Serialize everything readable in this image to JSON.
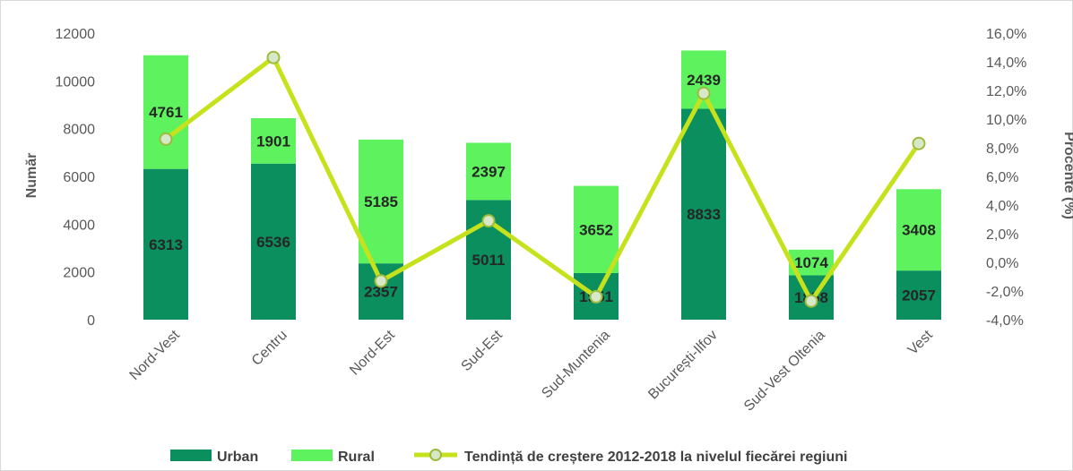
{
  "chart_data": {
    "type": "bar",
    "stacked": true,
    "categories": [
      "Nord-Vest",
      "Centru",
      "Nord-Est",
      "Sud-Est",
      "Sud-Muntenia",
      "București-Ilfov",
      "Sud-Vest Oltenia",
      "Vest"
    ],
    "series": [
      {
        "name": "Urban",
        "type": "bar",
        "axis": "left",
        "color": "#0b8f5f",
        "values": [
          6313,
          6536,
          2357,
          5011,
          1951,
          8833,
          1858,
          2057
        ]
      },
      {
        "name": "Rural",
        "type": "bar",
        "axis": "left",
        "color": "#5ef35e",
        "values": [
          4761,
          1901,
          5185,
          2397,
          3652,
          2439,
          1074,
          3408
        ]
      },
      {
        "name": "Tendință de creștere 2012-2018 la nivelul fiecărei regiuni",
        "type": "line",
        "axis": "right",
        "color": "#c6e21c",
        "values": [
          8.6,
          14.3,
          -1.3,
          2.9,
          -2.4,
          11.8,
          -2.7,
          8.3
        ]
      }
    ],
    "title": "",
    "ylabel": "Număr",
    "ylabel_right": "Procente (%)",
    "ylim": [
      0,
      12000
    ],
    "yticks": [
      "0",
      "2000",
      "4000",
      "6000",
      "8000",
      "10000",
      "12000"
    ],
    "ylim_right": [
      -4.0,
      16.0
    ],
    "yticks_right": [
      "-4,0%",
      "-2,0%",
      "0,0%",
      "2,0%",
      "4,0%",
      "6,0%",
      "8,0%",
      "10,0%",
      "12,0%",
      "14,0%",
      "16,0%"
    ],
    "grid": false,
    "legend": "bottom"
  }
}
